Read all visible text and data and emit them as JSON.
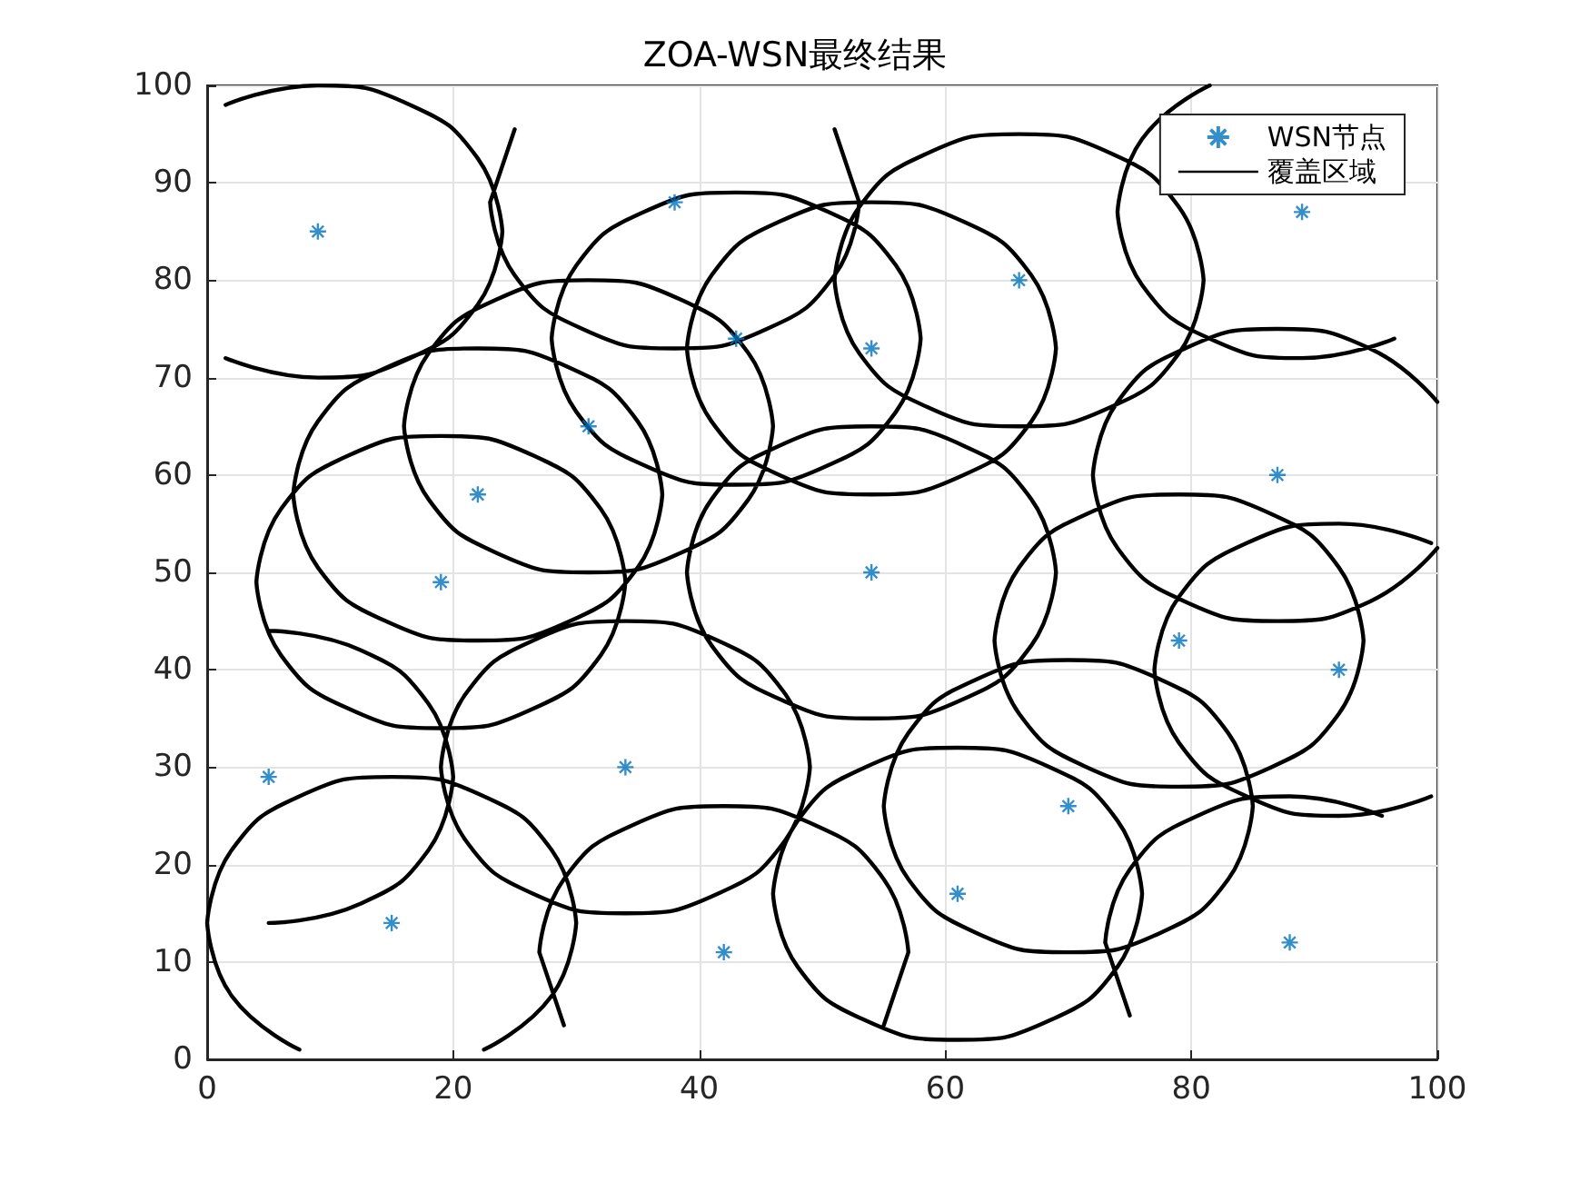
{
  "chart_data": {
    "type": "scatter",
    "title": "ZOA-WSN最终结果",
    "xlim": [
      0,
      100
    ],
    "ylim": [
      0,
      100
    ],
    "xticks": [
      0,
      20,
      40,
      60,
      80,
      100
    ],
    "yticks": [
      0,
      10,
      20,
      30,
      40,
      50,
      60,
      70,
      80,
      90,
      100
    ],
    "grid": true,
    "legend": "top right",
    "marker": "cross",
    "series": [
      {
        "name": "WSN节点",
        "color": "#0072bd",
        "x": [
          9,
          38,
          43,
          54,
          66,
          89,
          31,
          22,
          19,
          54,
          87,
          79,
          92,
          5,
          34,
          15,
          42,
          61,
          70,
          88
        ],
        "values": [
          85,
          88,
          74,
          73,
          80,
          87,
          65,
          58,
          49,
          50,
          60,
          43,
          40,
          29,
          30,
          14,
          11,
          17,
          26,
          12
        ]
      },
      {
        "name": "覆盖区域",
        "type": "line",
        "color": "#000000",
        "marker": "none",
        "line_style": "solid",
        "x": [
          1.5,
          9,
          16.5,
          22,
          24,
          null,
          1.5,
          9,
          16.5,
          22,
          24,
          null,
          23,
          25,
          null,
          51,
          53,
          null,
          23,
          25,
          30.5,
          38,
          45.5,
          51,
          53,
          null,
          28,
          30,
          35.5,
          43,
          50.5,
          56,
          58,
          null,
          28,
          30,
          35.5,
          43,
          50.5,
          56,
          58,
          null,
          39,
          41,
          46.5,
          54,
          61.5,
          67,
          69,
          null,
          39,
          41,
          46.5,
          54,
          61.5,
          67,
          69,
          null,
          51,
          53,
          58.5,
          66,
          73.5,
          79,
          81,
          null,
          51,
          53,
          58.5,
          66,
          73.5,
          79,
          81,
          null,
          74,
          76,
          81.5,
          null,
          74,
          76,
          81.5,
          89,
          96.5,
          null,
          16,
          18,
          23.5,
          31,
          38.5,
          44,
          46,
          null,
          16,
          18,
          23.5,
          31,
          38.5,
          44,
          46,
          null,
          7,
          9,
          14.5,
          22,
          29.5,
          35,
          37,
          null,
          7,
          9,
          14.5,
          22,
          29.5,
          35,
          37,
          null,
          4,
          6,
          11.5,
          19,
          26.5,
          32,
          34,
          null,
          4,
          6,
          11.5,
          19,
          26.5,
          32,
          34,
          null,
          39,
          41,
          46.5,
          54,
          61.5,
          67,
          69,
          null,
          39,
          41,
          46.5,
          54,
          61.5,
          67,
          69,
          null,
          72,
          74,
          79.5,
          87,
          94.5,
          100,
          null,
          72,
          74,
          79.5,
          87,
          94.5,
          100,
          null,
          64,
          66,
          71.5,
          79,
          86.5,
          92,
          94,
          null,
          64,
          66,
          71.5,
          79,
          86.5,
          92,
          94,
          null,
          77,
          79,
          84.5,
          92,
          99.5,
          null,
          77,
          79,
          84.5,
          92,
          99.5,
          null,
          5,
          12.5,
          18,
          20,
          null,
          5,
          12.5,
          18,
          20,
          null,
          19,
          21,
          26.5,
          34,
          41.5,
          47,
          49,
          null,
          19,
          21,
          26.5,
          34,
          41.5,
          47,
          49,
          null,
          0,
          2,
          7.5,
          15,
          22.5,
          28,
          30,
          null,
          0,
          2,
          7.5,
          null,
          22.5,
          28,
          30,
          null,
          27,
          29,
          34.5,
          42,
          49.5,
          55,
          57,
          null,
          27,
          29,
          null,
          55,
          57,
          null,
          46,
          48,
          53.5,
          61,
          68.5,
          74,
          76,
          null,
          46,
          48,
          53.5,
          61,
          68.5,
          74,
          76,
          null,
          55,
          57,
          62.5,
          70,
          77.5,
          83,
          85,
          null,
          55,
          57,
          62.5,
          70,
          77.5,
          83,
          85,
          null,
          73,
          75,
          80.5,
          88,
          95.5,
          null,
          73,
          75
        ],
        "values": [
          98,
          100,
          98,
          92.5,
          85,
          null,
          72,
          70,
          72,
          77.5,
          85,
          null,
          88,
          95.5,
          null,
          95.5,
          88,
          null,
          88,
          80.5,
          75,
          73,
          75,
          80.5,
          88,
          null,
          74,
          81.5,
          87,
          89,
          87,
          81.5,
          74,
          null,
          74,
          66.5,
          61,
          59,
          61,
          66.5,
          74,
          null,
          73,
          80.5,
          86,
          88,
          86,
          80.5,
          73,
          null,
          73,
          65.5,
          60,
          58,
          60,
          65.5,
          73,
          null,
          80,
          87.5,
          93,
          95,
          93,
          87.5,
          80,
          null,
          80,
          72.5,
          67,
          65,
          67,
          72.5,
          80,
          null,
          87,
          94.5,
          100,
          null,
          87,
          79.5,
          74,
          72,
          74,
          null,
          65,
          72.5,
          78,
          80,
          78,
          72.5,
          65,
          null,
          65,
          57.5,
          52,
          50,
          52,
          57.5,
          65,
          null,
          58,
          65.5,
          71,
          73,
          71,
          65.5,
          58,
          null,
          58,
          50.5,
          45,
          43,
          45,
          50.5,
          58,
          null,
          49,
          56.5,
          62,
          64,
          62,
          56.5,
          49,
          null,
          49,
          41.5,
          36,
          34,
          36,
          41.5,
          49,
          null,
          50,
          57.5,
          63,
          65,
          63,
          57.5,
          50,
          null,
          50,
          42.5,
          37,
          35,
          37,
          42.5,
          50,
          null,
          60,
          67.5,
          73,
          75,
          73,
          67.5,
          null,
          60,
          52.5,
          47,
          45,
          47,
          52.5,
          null,
          43,
          50.5,
          56,
          58,
          56,
          50.5,
          43,
          null,
          43,
          35.5,
          30,
          28,
          30,
          35.5,
          43,
          null,
          40,
          47.5,
          53,
          55,
          53,
          null,
          40,
          32.5,
          27,
          25,
          27,
          null,
          44,
          42,
          36.5,
          29,
          null,
          14,
          16,
          21.5,
          29,
          null,
          30,
          37.5,
          43,
          45,
          43,
          37.5,
          30,
          null,
          30,
          22.5,
          17,
          15,
          17,
          22.5,
          30,
          null,
          14,
          21.5,
          27,
          29,
          27,
          21.5,
          14,
          null,
          14,
          6.5,
          1,
          null,
          1,
          6.5,
          14,
          null,
          11,
          18.5,
          24,
          26,
          24,
          18.5,
          11,
          null,
          11,
          3.5,
          null,
          3.5,
          11,
          null,
          17,
          24.5,
          30,
          32,
          30,
          24.5,
          17,
          null,
          17,
          9.5,
          4,
          2,
          4,
          9.5,
          17,
          null,
          26,
          33.5,
          39,
          41,
          39,
          33.5,
          26,
          null,
          26,
          18.5,
          13,
          11,
          13,
          18.5,
          26,
          null,
          12,
          19.5,
          25,
          27,
          25,
          null,
          12,
          4.5
        ]
      }
    ]
  }
}
